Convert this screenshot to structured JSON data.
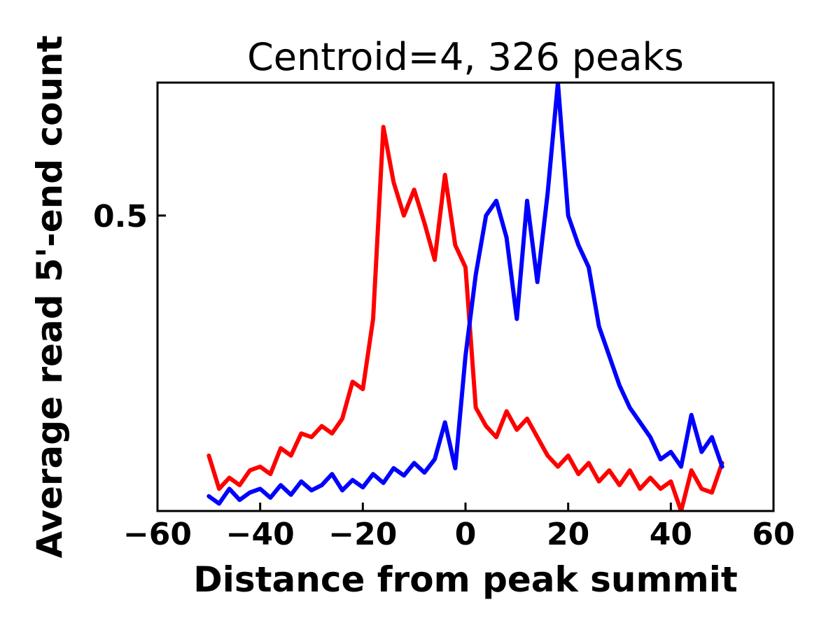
{
  "chart_data": {
    "type": "line",
    "title": "Centroid=4, 326 peaks",
    "xlabel": "Distance from peak summit",
    "ylabel": "Average read 5'-end count",
    "xlim": [
      -60,
      60
    ],
    "ylim": [
      0.1,
      0.68
    ],
    "xticks": [
      -60,
      -40,
      -20,
      0,
      20,
      40,
      60
    ],
    "yticks": [
      0.5
    ],
    "grid": false,
    "legend": "none",
    "frame_color": "#000000",
    "background_color": "#ffffff",
    "x": [
      -50,
      -48,
      -46,
      -44,
      -42,
      -40,
      -38,
      -36,
      -34,
      -32,
      -30,
      -28,
      -26,
      -24,
      -22,
      -20,
      -18,
      -16,
      -14,
      -12,
      -10,
      -8,
      -6,
      -4,
      -2,
      0,
      2,
      4,
      6,
      8,
      10,
      12,
      14,
      16,
      18,
      20,
      22,
      24,
      26,
      28,
      30,
      32,
      34,
      36,
      38,
      40,
      42,
      44,
      46,
      48,
      50
    ],
    "series": [
      {
        "name": "red-strand",
        "color": "#ff0000",
        "values": [
          0.175,
          0.13,
          0.145,
          0.135,
          0.155,
          0.16,
          0.15,
          0.185,
          0.175,
          0.205,
          0.2,
          0.215,
          0.205,
          0.225,
          0.275,
          0.265,
          0.36,
          0.62,
          0.545,
          0.5,
          0.535,
          0.49,
          0.44,
          0.555,
          0.46,
          0.43,
          0.24,
          0.215,
          0.2,
          0.235,
          0.21,
          0.225,
          0.2,
          0.175,
          0.16,
          0.175,
          0.15,
          0.165,
          0.14,
          0.155,
          0.135,
          0.155,
          0.13,
          0.145,
          0.13,
          0.14,
          0.1,
          0.155,
          0.13,
          0.125,
          0.165
        ]
      },
      {
        "name": "blue-strand",
        "color": "#0000ff",
        "values": [
          0.12,
          0.11,
          0.13,
          0.115,
          0.125,
          0.13,
          0.118,
          0.135,
          0.122,
          0.14,
          0.128,
          0.135,
          0.15,
          0.128,
          0.142,
          0.132,
          0.15,
          0.138,
          0.158,
          0.148,
          0.165,
          0.152,
          0.17,
          0.22,
          0.158,
          0.31,
          0.42,
          0.5,
          0.52,
          0.47,
          0.36,
          0.52,
          0.41,
          0.53,
          0.68,
          0.5,
          0.46,
          0.43,
          0.35,
          0.31,
          0.27,
          0.24,
          0.22,
          0.2,
          0.17,
          0.18,
          0.16,
          0.23,
          0.18,
          0.2,
          0.16
        ]
      }
    ]
  }
}
